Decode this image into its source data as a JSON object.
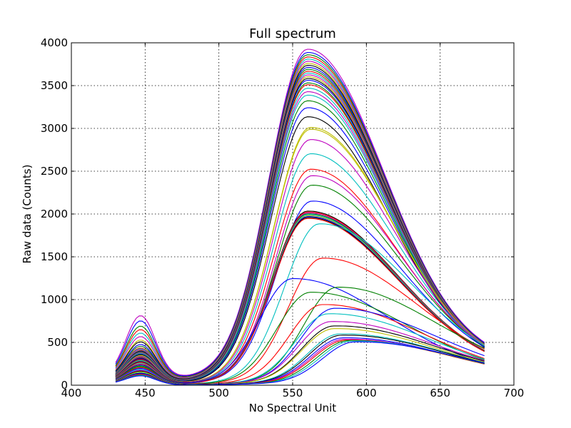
{
  "chart_data": {
    "type": "line",
    "title": "Full spectrum",
    "xlabel": "No Spectral Unit",
    "ylabel": "Raw data (Counts)",
    "xlim": [
      400,
      700
    ],
    "ylim": [
      0,
      4000
    ],
    "x_range": [
      430,
      680
    ],
    "xticks": [
      400,
      450,
      500,
      550,
      600,
      650,
      700
    ],
    "yticks": [
      0,
      500,
      1000,
      1500,
      2000,
      2500,
      3000,
      3500,
      4000
    ],
    "grid": true,
    "palette": [
      "#0000ff",
      "#008000",
      "#ff0000",
      "#00bfbf",
      "#bf00bf",
      "#bfbf00",
      "#000000"
    ],
    "series_count": 60,
    "series": [
      {
        "color": "#bf00bf",
        "blue_peak": 800,
        "green_peak": 3810,
        "green_peak_x": 560,
        "end_value": 500
      },
      {
        "color": "#0000ff",
        "blue_peak": 740,
        "green_peak": 3780,
        "green_peak_x": 560,
        "end_value": 490
      },
      {
        "color": "#008000",
        "blue_peak": 680,
        "green_peak": 3760,
        "green_peak_x": 560,
        "end_value": 480
      },
      {
        "color": "#ff0000",
        "blue_peak": 640,
        "green_peak": 3740,
        "green_peak_x": 560,
        "end_value": 470
      },
      {
        "color": "#00bfbf",
        "blue_peak": 600,
        "green_peak": 3720,
        "green_peak_x": 560,
        "end_value": 465
      },
      {
        "color": "#bf00bf",
        "blue_peak": 560,
        "green_peak": 3700,
        "green_peak_x": 560,
        "end_value": 460
      },
      {
        "color": "#bfbf00",
        "blue_peak": 520,
        "green_peak": 3680,
        "green_peak_x": 560,
        "end_value": 455
      },
      {
        "color": "#000000",
        "blue_peak": 500,
        "green_peak": 3660,
        "green_peak_x": 560,
        "end_value": 450
      },
      {
        "color": "#0000ff",
        "blue_peak": 470,
        "green_peak": 3640,
        "green_peak_x": 560,
        "end_value": 445
      },
      {
        "color": "#008000",
        "blue_peak": 450,
        "green_peak": 3620,
        "green_peak_x": 560,
        "end_value": 440
      },
      {
        "color": "#ff0000",
        "blue_peak": 430,
        "green_peak": 3600,
        "green_peak_x": 560,
        "end_value": 435
      },
      {
        "color": "#00bfbf",
        "blue_peak": 420,
        "green_peak": 3580,
        "green_peak_x": 560,
        "end_value": 430
      },
      {
        "color": "#bf00bf",
        "blue_peak": 410,
        "green_peak": 3560,
        "green_peak_x": 560,
        "end_value": 425
      },
      {
        "color": "#bfbf00",
        "blue_peak": 400,
        "green_peak": 3540,
        "green_peak_x": 560,
        "end_value": 420
      },
      {
        "color": "#000000",
        "blue_peak": 395,
        "green_peak": 3520,
        "green_peak_x": 560,
        "end_value": 415
      },
      {
        "color": "#0000ff",
        "blue_peak": 390,
        "green_peak": 3500,
        "green_peak_x": 560,
        "end_value": 410
      },
      {
        "color": "#008000",
        "blue_peak": 385,
        "green_peak": 3470,
        "green_peak_x": 560,
        "end_value": 405
      },
      {
        "color": "#ff0000",
        "blue_peak": 380,
        "green_peak": 3450,
        "green_peak_x": 560,
        "end_value": 400
      },
      {
        "color": "#00bfbf",
        "blue_peak": 375,
        "green_peak": 3410,
        "green_peak_x": 560,
        "end_value": 395
      },
      {
        "color": "#bf00bf",
        "blue_peak": 370,
        "green_peak": 3370,
        "green_peak_x": 560,
        "end_value": 390
      },
      {
        "color": "#00bfbf",
        "blue_peak": 365,
        "green_peak": 3330,
        "green_peak_x": 560,
        "end_value": 385
      },
      {
        "color": "#008000",
        "blue_peak": 360,
        "green_peak": 3265,
        "green_peak_x": 560,
        "end_value": 380
      },
      {
        "color": "#0000ff",
        "blue_peak": 355,
        "green_peak": 3185,
        "green_peak_x": 560,
        "end_value": 375
      },
      {
        "color": "#000000",
        "blue_peak": 350,
        "green_peak": 3080,
        "green_peak_x": 560,
        "end_value": 370
      },
      {
        "color": "#bfbf00",
        "blue_peak": 345,
        "green_peak": 2955,
        "green_peak_x": 562,
        "end_value": 365
      },
      {
        "color": "#bfbf00",
        "blue_peak": 340,
        "green_peak": 2935,
        "green_peak_x": 562,
        "end_value": 360
      },
      {
        "color": "#bf00bf",
        "blue_peak": 335,
        "green_peak": 2815,
        "green_peak_x": 562,
        "end_value": 355
      },
      {
        "color": "#00bfbf",
        "blue_peak": 330,
        "green_peak": 2650,
        "green_peak_x": 562,
        "end_value": 350
      },
      {
        "color": "#ff0000",
        "blue_peak": 325,
        "green_peak": 2470,
        "green_peak_x": 562,
        "end_value": 345
      },
      {
        "color": "#bf00bf",
        "blue_peak": 320,
        "green_peak": 2395,
        "green_peak_x": 563,
        "end_value": 340
      },
      {
        "color": "#008000",
        "blue_peak": 315,
        "green_peak": 2285,
        "green_peak_x": 563,
        "end_value": 335
      },
      {
        "color": "#0000ff",
        "blue_peak": 310,
        "green_peak": 2100,
        "green_peak_x": 563,
        "end_value": 330
      },
      {
        "color": "#000000",
        "blue_peak": 305,
        "green_peak": 1985,
        "green_peak_x": 560,
        "end_value": 325
      },
      {
        "color": "#ff0000",
        "blue_peak": 300,
        "green_peak": 1975,
        "green_peak_x": 560,
        "end_value": 322
      },
      {
        "color": "#bf00bf",
        "blue_peak": 295,
        "green_peak": 1965,
        "green_peak_x": 560,
        "end_value": 320
      },
      {
        "color": "#008000",
        "blue_peak": 290,
        "green_peak": 1955,
        "green_peak_x": 560,
        "end_value": 318
      },
      {
        "color": "#00bfbf",
        "blue_peak": 285,
        "green_peak": 1945,
        "green_peak_x": 560,
        "end_value": 316
      },
      {
        "color": "#bfbf00",
        "blue_peak": 280,
        "green_peak": 1935,
        "green_peak_x": 560,
        "end_value": 314
      },
      {
        "color": "#0000ff",
        "blue_peak": 275,
        "green_peak": 1925,
        "green_peak_x": 560,
        "end_value": 312
      },
      {
        "color": "#000000",
        "blue_peak": 270,
        "green_peak": 1915,
        "green_peak_x": 560,
        "end_value": 310
      },
      {
        "color": "#ff0000",
        "blue_peak": 265,
        "green_peak": 1905,
        "green_peak_x": 560,
        "end_value": 308
      },
      {
        "color": "#00bfbf",
        "blue_peak": 255,
        "green_peak": 1840,
        "green_peak_x": 568,
        "end_value": 300
      },
      {
        "color": "#ff0000",
        "blue_peak": 245,
        "green_peak": 1440,
        "green_peak_x": 570,
        "end_value": 280
      },
      {
        "color": "#0000ff",
        "blue_peak": 235,
        "green_peak": 1210,
        "green_peak_x": 550,
        "end_value": 265
      },
      {
        "color": "#008000",
        "blue_peak": 225,
        "green_peak": 1100,
        "green_peak_x": 580,
        "end_value": 250
      },
      {
        "color": "#008000",
        "blue_peak": 215,
        "green_peak": 1050,
        "green_peak_x": 562,
        "end_value": 240
      },
      {
        "color": "#ff0000",
        "blue_peak": 205,
        "green_peak": 905,
        "green_peak_x": 570,
        "end_value": 230
      },
      {
        "color": "#0000ff",
        "blue_peak": 195,
        "green_peak": 860,
        "green_peak_x": 578,
        "end_value": 220
      },
      {
        "color": "#00bfbf",
        "blue_peak": 185,
        "green_peak": 800,
        "green_peak_x": 574,
        "end_value": 210
      },
      {
        "color": "#bf00bf",
        "blue_peak": 175,
        "green_peak": 710,
        "green_peak_x": 576,
        "end_value": 200
      },
      {
        "color": "#000000",
        "blue_peak": 165,
        "green_peak": 660,
        "green_peak_x": 578,
        "end_value": 190
      },
      {
        "color": "#bfbf00",
        "blue_peak": 155,
        "green_peak": 630,
        "green_peak_x": 578,
        "end_value": 180
      },
      {
        "color": "#00bfbf",
        "blue_peak": 145,
        "green_peak": 570,
        "green_peak_x": 582,
        "end_value": 170
      },
      {
        "color": "#000000",
        "blue_peak": 140,
        "green_peak": 555,
        "green_peak_x": 583,
        "end_value": 165
      },
      {
        "color": "#0000ff",
        "blue_peak": 135,
        "green_peak": 525,
        "green_peak_x": 584,
        "end_value": 160
      },
      {
        "color": "#bf00bf",
        "blue_peak": 130,
        "green_peak": 510,
        "green_peak_x": 585,
        "end_value": 155
      },
      {
        "color": "#ff0000",
        "blue_peak": 125,
        "green_peak": 500,
        "green_peak_x": 586,
        "end_value": 150
      },
      {
        "color": "#008000",
        "blue_peak": 120,
        "green_peak": 495,
        "green_peak_x": 588,
        "end_value": 145
      },
      {
        "color": "#00bfbf",
        "blue_peak": 115,
        "green_peak": 490,
        "green_peak_x": 590,
        "end_value": 140
      },
      {
        "color": "#0000ff",
        "blue_peak": 110,
        "green_peak": 480,
        "green_peak_x": 592,
        "end_value": 135
      }
    ]
  }
}
